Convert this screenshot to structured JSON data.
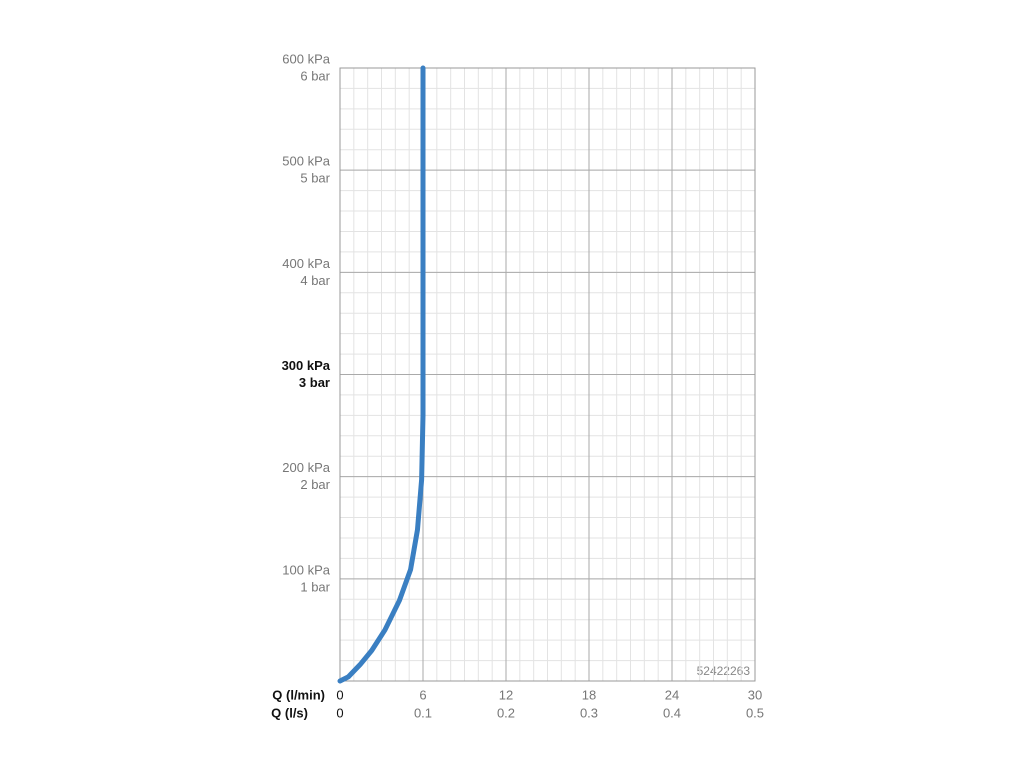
{
  "chart_data": {
    "type": "line",
    "xlabel": "Q (l/min)",
    "x2label": "Q (l/s)",
    "xlim": [
      0,
      30
    ],
    "xticks": [
      0,
      6,
      12,
      18,
      24,
      30
    ],
    "x2lim": [
      0,
      0.5
    ],
    "x2ticks": [
      0,
      0.1,
      0.2,
      0.3,
      0.4,
      0.5
    ],
    "ylim": [
      0,
      600
    ],
    "yticks": [
      {
        "value": 100,
        "label": "100 kPa"
      },
      {
        "value": 200,
        "label": "200 kPa"
      },
      {
        "value": 300,
        "label": "300 kPa"
      },
      {
        "value": 400,
        "label": "400 kPa"
      },
      {
        "value": 500,
        "label": "500 kPa"
      },
      {
        "value": 600,
        "label": "600 kPa"
      }
    ],
    "y2lim": [
      0,
      6
    ],
    "y2ticks": [
      {
        "value": 1,
        "label": "1 bar"
      },
      {
        "value": 2,
        "label": "2 bar"
      },
      {
        "value": 3,
        "label": "3 bar"
      },
      {
        "value": 4,
        "label": "4 bar"
      },
      {
        "value": 5,
        "label": "5 bar"
      },
      {
        "value": 6,
        "label": "6 bar"
      }
    ],
    "highlight_ytick": 300,
    "grid": true,
    "minor_grid": {
      "x": 1,
      "y": 20
    },
    "annotation": "52422263",
    "series": [
      {
        "name": "52422263",
        "color": "#3a7fc2",
        "x": [
          0,
          0.6,
          1.45,
          2.3,
          3.25,
          4.3,
          5.1,
          5.6,
          5.9,
          6,
          6
        ],
        "values": [
          0,
          4,
          16,
          30,
          50,
          79,
          109,
          148,
          197,
          260,
          600
        ]
      }
    ]
  }
}
